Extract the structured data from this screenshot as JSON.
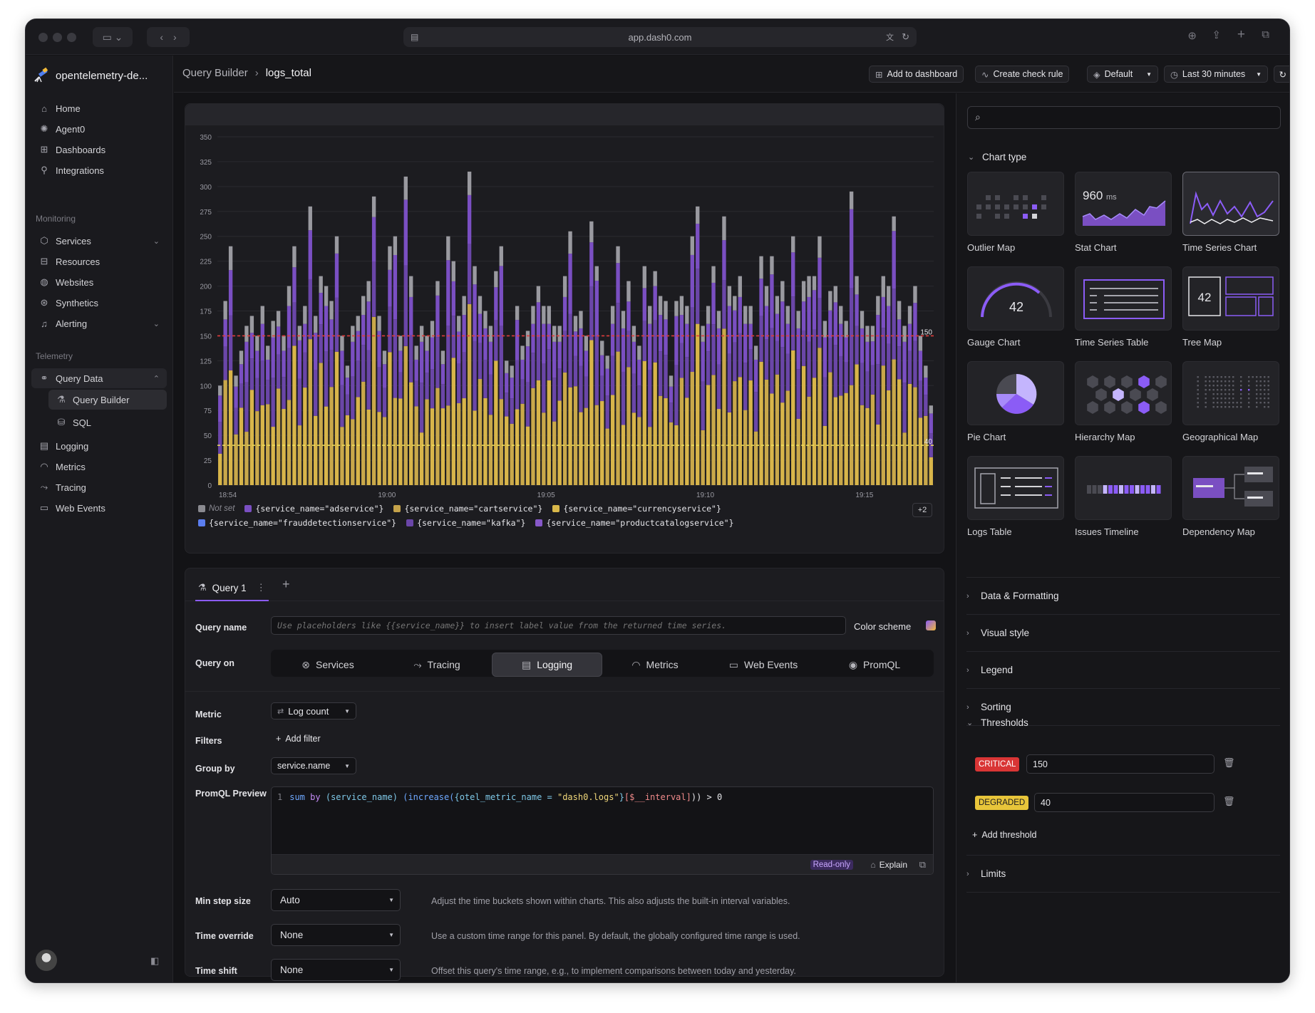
{
  "browser": {
    "url": "app.dash0.com"
  },
  "sidebar": {
    "org_name": "opentelemetry-de...",
    "top_items": [
      {
        "label": "Home",
        "icon": "home-icon"
      },
      {
        "label": "Agent0",
        "icon": "agent-icon"
      },
      {
        "label": "Dashboards",
        "icon": "dashboards-icon"
      },
      {
        "label": "Integrations",
        "icon": "integrations-icon"
      }
    ],
    "monitoring_label": "Monitoring",
    "monitoring_items": [
      {
        "label": "Services",
        "icon": "cube-icon"
      },
      {
        "label": "Resources",
        "icon": "resources-icon"
      },
      {
        "label": "Websites",
        "icon": "globe-icon"
      },
      {
        "label": "Synthetics",
        "icon": "synthetics-icon"
      },
      {
        "label": "Alerting",
        "icon": "bell-icon"
      }
    ],
    "telemetry_label": "Telemetry",
    "query_data": "Query Data",
    "query_sub": [
      {
        "label": "Query Builder",
        "icon": "flask-icon"
      },
      {
        "label": "SQL",
        "icon": "database-icon"
      }
    ],
    "telemetry_items": [
      {
        "label": "Logging",
        "icon": "log-icon"
      },
      {
        "label": "Metrics",
        "icon": "gauge-icon"
      },
      {
        "label": "Tracing",
        "icon": "trace-icon"
      },
      {
        "label": "Web Events",
        "icon": "browser-icon"
      }
    ]
  },
  "header": {
    "breadcrumb_parent": "Query Builder",
    "breadcrumb_current": "logs_total",
    "add_dashboard": "Add to dashboard",
    "create_check": "Create check rule",
    "dataset": "Default",
    "time_range": "Last 30 minutes"
  },
  "chart_data": {
    "type": "bar",
    "stacked": true,
    "yticks": [
      0,
      25,
      50,
      75,
      100,
      125,
      150,
      175,
      200,
      225,
      250,
      275,
      300,
      325,
      350
    ],
    "ylim": [
      0,
      350
    ],
    "xticks": [
      "18:54",
      "19:00",
      "19:05",
      "19:10",
      "19:15"
    ],
    "totals": [
      100,
      185,
      240,
      110,
      135,
      160,
      170,
      150,
      180,
      140,
      165,
      175,
      150,
      200,
      240,
      160,
      180,
      280,
      170,
      210,
      200,
      185,
      250,
      150,
      120,
      160,
      170,
      190,
      205,
      290,
      170,
      135,
      240,
      250,
      150,
      310,
      210,
      140,
      160,
      150,
      165,
      205,
      135,
      250,
      225,
      170,
      190,
      315,
      220,
      190,
      175,
      160,
      215,
      240,
      125,
      120,
      180,
      140,
      155,
      180,
      200,
      180,
      180,
      160,
      160,
      210,
      255,
      170,
      175,
      150,
      265,
      220,
      145,
      130,
      180,
      240,
      175,
      205,
      160,
      140,
      220,
      180,
      215,
      190,
      185,
      110,
      185,
      190,
      180,
      250,
      280,
      160,
      180,
      220,
      175,
      270,
      200,
      190,
      210,
      180,
      180,
      140,
      230,
      200,
      230,
      190,
      205,
      180,
      250,
      175,
      205,
      210,
      210,
      250,
      165,
      195,
      200,
      180,
      165,
      295,
      210,
      175,
      160,
      160,
      190,
      210,
      200,
      270,
      185,
      160,
      180,
      200,
      150,
      120,
      80
    ],
    "yellow_frac": 0.45,
    "thresholds": [
      {
        "value": 150,
        "label": "150",
        "color": "#e03b3b"
      },
      {
        "value": 40,
        "label": "40",
        "color": "#f0e05a"
      }
    ],
    "legend": [
      {
        "name": "Not set",
        "color": "#8a8a90"
      },
      {
        "name": "{service_name=\"adservice\"}",
        "color": "#7a4fc2"
      },
      {
        "name": "{service_name=\"cartservice\"}",
        "color": "#c4a24a"
      },
      {
        "name": "{service_name=\"currencyservice\"}",
        "color": "#d9b84a"
      },
      {
        "name": "{service_name=\"frauddetectionservice\"}",
        "color": "#5b7ef0"
      },
      {
        "name": "{service_name=\"kafka\"}",
        "color": "#6a46a8"
      },
      {
        "name": "{service_name=\"productcatalogservice\"}",
        "color": "#8658c8"
      }
    ],
    "legend_more": "+2"
  },
  "query": {
    "tab_label": "Query 1",
    "name_label": "Query name",
    "name_placeholder": "Use placeholders like {{service_name}} to insert label value from the returned time series.",
    "color_scheme_label": "Color scheme",
    "query_on_label": "Query on",
    "sources": [
      {
        "label": "Services",
        "icon": "services-icon"
      },
      {
        "label": "Tracing",
        "icon": "trace-icon"
      },
      {
        "label": "Logging",
        "icon": "log-icon"
      },
      {
        "label": "Metrics",
        "icon": "gauge-icon"
      },
      {
        "label": "Web Events",
        "icon": "browser-icon"
      },
      {
        "label": "PromQL",
        "icon": "promql-icon"
      }
    ],
    "metric_label": "Metric",
    "metric_value": "Log count",
    "filters_label": "Filters",
    "add_filter": "Add filter",
    "group_by_label": "Group by",
    "group_by_value": "service.name",
    "promql_label": "PromQL Preview",
    "promql_line": "1",
    "promql_parts": {
      "sum": "sum",
      "by": "by",
      "lbl": "(service_name)",
      "fn": "(increase(",
      "sel": "{otel_metric_name = ",
      "str": "\"dash0.logs\"",
      "close": "}",
      "rng": "[$__interval]",
      "end": ")) > 0"
    },
    "readonly": "Read-only",
    "explain": "Explain",
    "min_step_label": "Min step size",
    "min_step_value": "Auto",
    "min_step_hint": "Adjust the time buckets shown within charts. This also adjusts the built-in interval variables.",
    "time_override_label": "Time override",
    "time_override_value": "None",
    "time_override_hint": "Use a custom time range for this panel. By default, the globally configured time range is used.",
    "time_shift_label": "Time shift",
    "time_shift_value": "None",
    "time_shift_hint": "Offset this query's time range, e.g., to implement comparisons between today and yesterday."
  },
  "right": {
    "chart_type_label": "Chart type",
    "chart_types": [
      "Outlier Map",
      "Stat Chart",
      "Time Series Chart",
      "Gauge Chart",
      "Time Series Table",
      "Tree Map",
      "Pie Chart",
      "Hierarchy Map",
      "Geographical Map",
      "Logs Table",
      "Issues Timeline",
      "Dependency Map"
    ],
    "stat_value": "960",
    "stat_unit": "ms",
    "gauge_value": "42",
    "tree_value": "42",
    "sections": [
      "Data & Formatting",
      "Visual style",
      "Legend",
      "Sorting"
    ],
    "thresholds_label": "Thresholds",
    "critical_label": "CRITICAL",
    "critical_value": "150",
    "degraded_label": "DEGRADED",
    "degraded_value": "40",
    "add_threshold": "Add threshold",
    "limits_label": "Limits",
    "colors": {
      "critical": "#d93535",
      "degraded": "#e8c53a",
      "accent": "#8b5cf6"
    }
  }
}
